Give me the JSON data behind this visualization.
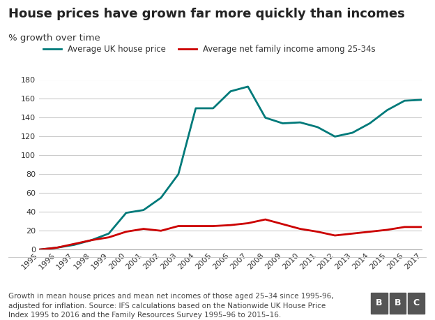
{
  "title": "House prices have grown far more quickly than incomes",
  "subtitle": "% growth over time",
  "footnote": "Growth in mean house prices and mean net incomes of those aged 25–34 since 1995-96,\nadjusted for inflation. Source: IFS calculations based on the Nationwide UK House Price\nIndex 1995 to 2016 and the Family Resources Survey 1995–96 to 2015–16.",
  "years": [
    1995,
    1996,
    1997,
    1998,
    1999,
    2000,
    2001,
    2002,
    2003,
    2004,
    2005,
    2006,
    2007,
    2008,
    2009,
    2010,
    2011,
    2012,
    2013,
    2014,
    2015,
    2016,
    2017
  ],
  "house_price": [
    0,
    2,
    5,
    10,
    17,
    39,
    42,
    55,
    80,
    150,
    150,
    168,
    173,
    140,
    134,
    135,
    130,
    120,
    124,
    134,
    148,
    158,
    159
  ],
  "income": [
    0,
    2,
    6,
    10,
    13,
    19,
    22,
    20,
    25,
    25,
    25,
    26,
    28,
    32,
    27,
    22,
    19,
    15,
    17,
    19,
    21,
    24,
    24
  ],
  "house_color": "#007A7A",
  "income_color": "#CC0000",
  "bg_color": "#FFFFFF",
  "grid_color": "#CCCCCC",
  "legend_house": "Average UK house price",
  "legend_income": "Average net family income among 25-34s",
  "ylim": [
    0,
    180
  ],
  "yticks": [
    0,
    20,
    40,
    60,
    80,
    100,
    120,
    140,
    160,
    180
  ],
  "title_fontsize": 13,
  "subtitle_fontsize": 9.5,
  "footnote_fontsize": 7.5,
  "axis_fontsize": 8
}
